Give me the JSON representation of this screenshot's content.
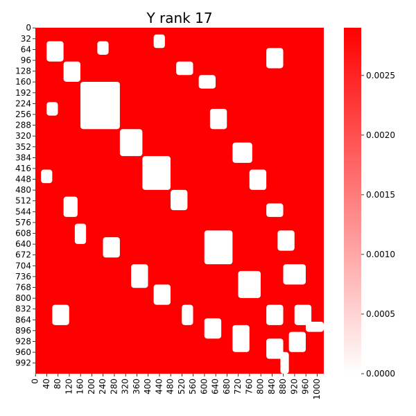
{
  "chart_data": {
    "type": "heatmap",
    "title": "Y rank 17",
    "xlabel": "",
    "ylabel": "",
    "matrix_size": 1024,
    "grid": false,
    "x_ticks": [
      0,
      40,
      80,
      120,
      160,
      200,
      240,
      280,
      320,
      360,
      400,
      440,
      480,
      520,
      560,
      600,
      640,
      680,
      720,
      760,
      800,
      840,
      880,
      920,
      960,
      1000
    ],
    "y_ticks": [
      0,
      32,
      64,
      96,
      128,
      160,
      192,
      224,
      256,
      288,
      320,
      352,
      384,
      416,
      448,
      480,
      512,
      544,
      576,
      608,
      640,
      672,
      704,
      736,
      768,
      800,
      832,
      864,
      896,
      928,
      960,
      992
    ],
    "colorbar": {
      "min": 0.0,
      "max": 0.0029,
      "ticks": [
        0.0,
        0.0005,
        0.001,
        0.0015,
        0.002,
        0.0025
      ],
      "tick_labels": [
        "0.0000",
        "0.0005",
        "0.0010",
        "0.0015",
        "0.0020",
        "0.0025"
      ],
      "cmap_low": "#ffffff",
      "cmap_high": "#ff0000"
    },
    "approx_white_regions": [
      [
        160,
        300,
        160,
        300
      ],
      [
        300,
        380,
        300,
        380
      ],
      [
        380,
        480,
        380,
        480
      ],
      [
        480,
        540,
        480,
        540
      ],
      [
        600,
        700,
        600,
        700
      ],
      [
        720,
        800,
        720,
        800
      ],
      [
        820,
        880,
        820,
        880
      ],
      [
        900,
        960,
        900,
        960
      ],
      [
        40,
        100,
        40,
        100
      ],
      [
        100,
        160,
        100,
        160
      ],
      [
        500,
        560,
        100,
        150
      ],
      [
        580,
        640,
        140,
        180
      ],
      [
        620,
        680,
        240,
        300
      ],
      [
        700,
        770,
        340,
        400
      ],
      [
        760,
        820,
        420,
        480
      ],
      [
        820,
        880,
        520,
        560
      ],
      [
        860,
        920,
        600,
        660
      ],
      [
        880,
        960,
        700,
        760
      ],
      [
        920,
        980,
        820,
        880
      ],
      [
        960,
        1024,
        870,
        900
      ],
      [
        100,
        140,
        500,
        560
      ],
      [
        140,
        180,
        580,
        640
      ],
      [
        240,
        300,
        620,
        680
      ],
      [
        340,
        400,
        700,
        770
      ],
      [
        420,
        480,
        760,
        820
      ],
      [
        520,
        560,
        820,
        880
      ],
      [
        600,
        660,
        860,
        920
      ],
      [
        700,
        760,
        880,
        960
      ],
      [
        820,
        880,
        920,
        980
      ],
      [
        870,
        900,
        960,
        1024
      ],
      [
        40,
        80,
        220,
        260
      ],
      [
        220,
        260,
        40,
        80
      ],
      [
        60,
        120,
        820,
        880
      ],
      [
        820,
        880,
        60,
        120
      ],
      [
        20,
        60,
        420,
        460
      ],
      [
        420,
        460,
        20,
        60
      ]
    ],
    "approx_diagonal_value": 0.0029
  }
}
